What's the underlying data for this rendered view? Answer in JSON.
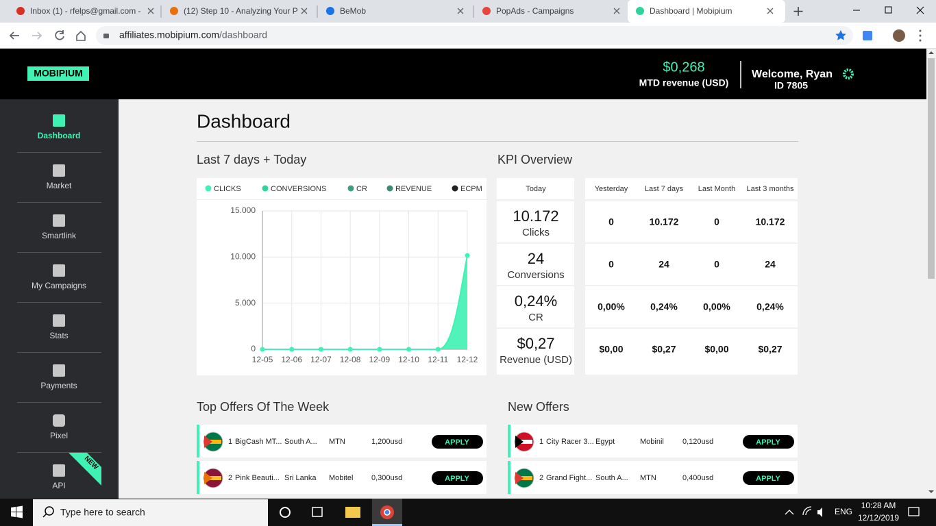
{
  "browser": {
    "tabs": [
      "Inbox (1) - rfelps@gmail.com -",
      "(12) Step 10 - Analyzing Your P",
      "BeMob",
      "PopAds - Campaigns",
      "Dashboard | Mobipium"
    ],
    "url_host": "affiliates.mobipium.com",
    "url_path": "/dashboard"
  },
  "header": {
    "logo": "MOBIPIUM",
    "revenue": "$0,268",
    "revenue_label": "MTD revenue (USD)",
    "welcome": "Welcome, Ryan",
    "user_id": "ID 7805"
  },
  "sidebar": {
    "items": [
      "Dashboard",
      "Market",
      "Smartlink",
      "My Campaigns",
      "Stats",
      "Payments",
      "Pixel",
      "API"
    ],
    "badge": "NEW"
  },
  "page_title": "Dashboard",
  "chart_section_title": "Last 7 days + Today",
  "kpi_section_title": "KPI Overview",
  "chart_data": {
    "type": "area",
    "categories": [
      "12-05",
      "12-06",
      "12-07",
      "12-08",
      "12-09",
      "12-10",
      "12-11",
      "12-12"
    ],
    "series": [
      {
        "name": "CLICKS",
        "color": "#3ff2b3",
        "values": [
          0,
          0,
          0,
          0,
          0,
          0,
          0,
          10172
        ]
      },
      {
        "name": "CONVERSIONS",
        "color": "#2fd39e"
      },
      {
        "name": "CR",
        "color": "#3d9f80"
      },
      {
        "name": "REVENUE",
        "color": "#3c8b73"
      },
      {
        "name": "ECPM",
        "color": "#222222"
      }
    ],
    "ylim": [
      0,
      15000
    ],
    "yticks": [
      0,
      {
        "value": 5000,
        "label": "5.000"
      },
      {
        "value": 10000,
        "label": "10.000"
      },
      {
        "value": 15000,
        "label": "15.000"
      }
    ],
    "grid": true
  },
  "kpi": {
    "headers": [
      "Today",
      "Yesterday",
      "Last 7 days",
      "Last Month",
      "Last 3 months"
    ],
    "rows": [
      {
        "today": "10.172",
        "label": "Clicks",
        "values": [
          "0",
          "10.172",
          "0",
          "10.172"
        ]
      },
      {
        "today": "24",
        "label": "Conversions",
        "values": [
          "0",
          "24",
          "0",
          "24"
        ]
      },
      {
        "today": "0,24%",
        "label": "CR",
        "values": [
          "0,00%",
          "0,24%",
          "0,00%",
          "0,24%"
        ]
      },
      {
        "today": "$0,27",
        "label": "Revenue (USD)",
        "values": [
          "$0,00",
          "$0,27",
          "$0,00",
          "$0,27"
        ]
      }
    ]
  },
  "top_offers": {
    "title": "Top Offers Of The Week",
    "rows": [
      {
        "rank": "1",
        "name": "BigCash MT...",
        "country": "South A...",
        "carrier": "MTN",
        "payout": "1,200usd"
      },
      {
        "rank": "2",
        "name": "Pink Beauti...",
        "country": "Sri Lanka",
        "carrier": "Mobitel",
        "payout": "0,300usd"
      }
    ]
  },
  "new_offers": {
    "title": "New Offers",
    "rows": [
      {
        "rank": "1",
        "name": "City Racer 3...",
        "country": "Egypt",
        "carrier": "Mobinil",
        "payout": "0,120usd"
      },
      {
        "rank": "2",
        "name": "Grand Fight...",
        "country": "South A...",
        "carrier": "MTN",
        "payout": "0,400usd"
      }
    ]
  },
  "apply": "APPLY",
  "taskbar": {
    "search": "Type here to search",
    "lang": "ENG",
    "time": "10:28 AM",
    "date": "12/12/2019"
  }
}
